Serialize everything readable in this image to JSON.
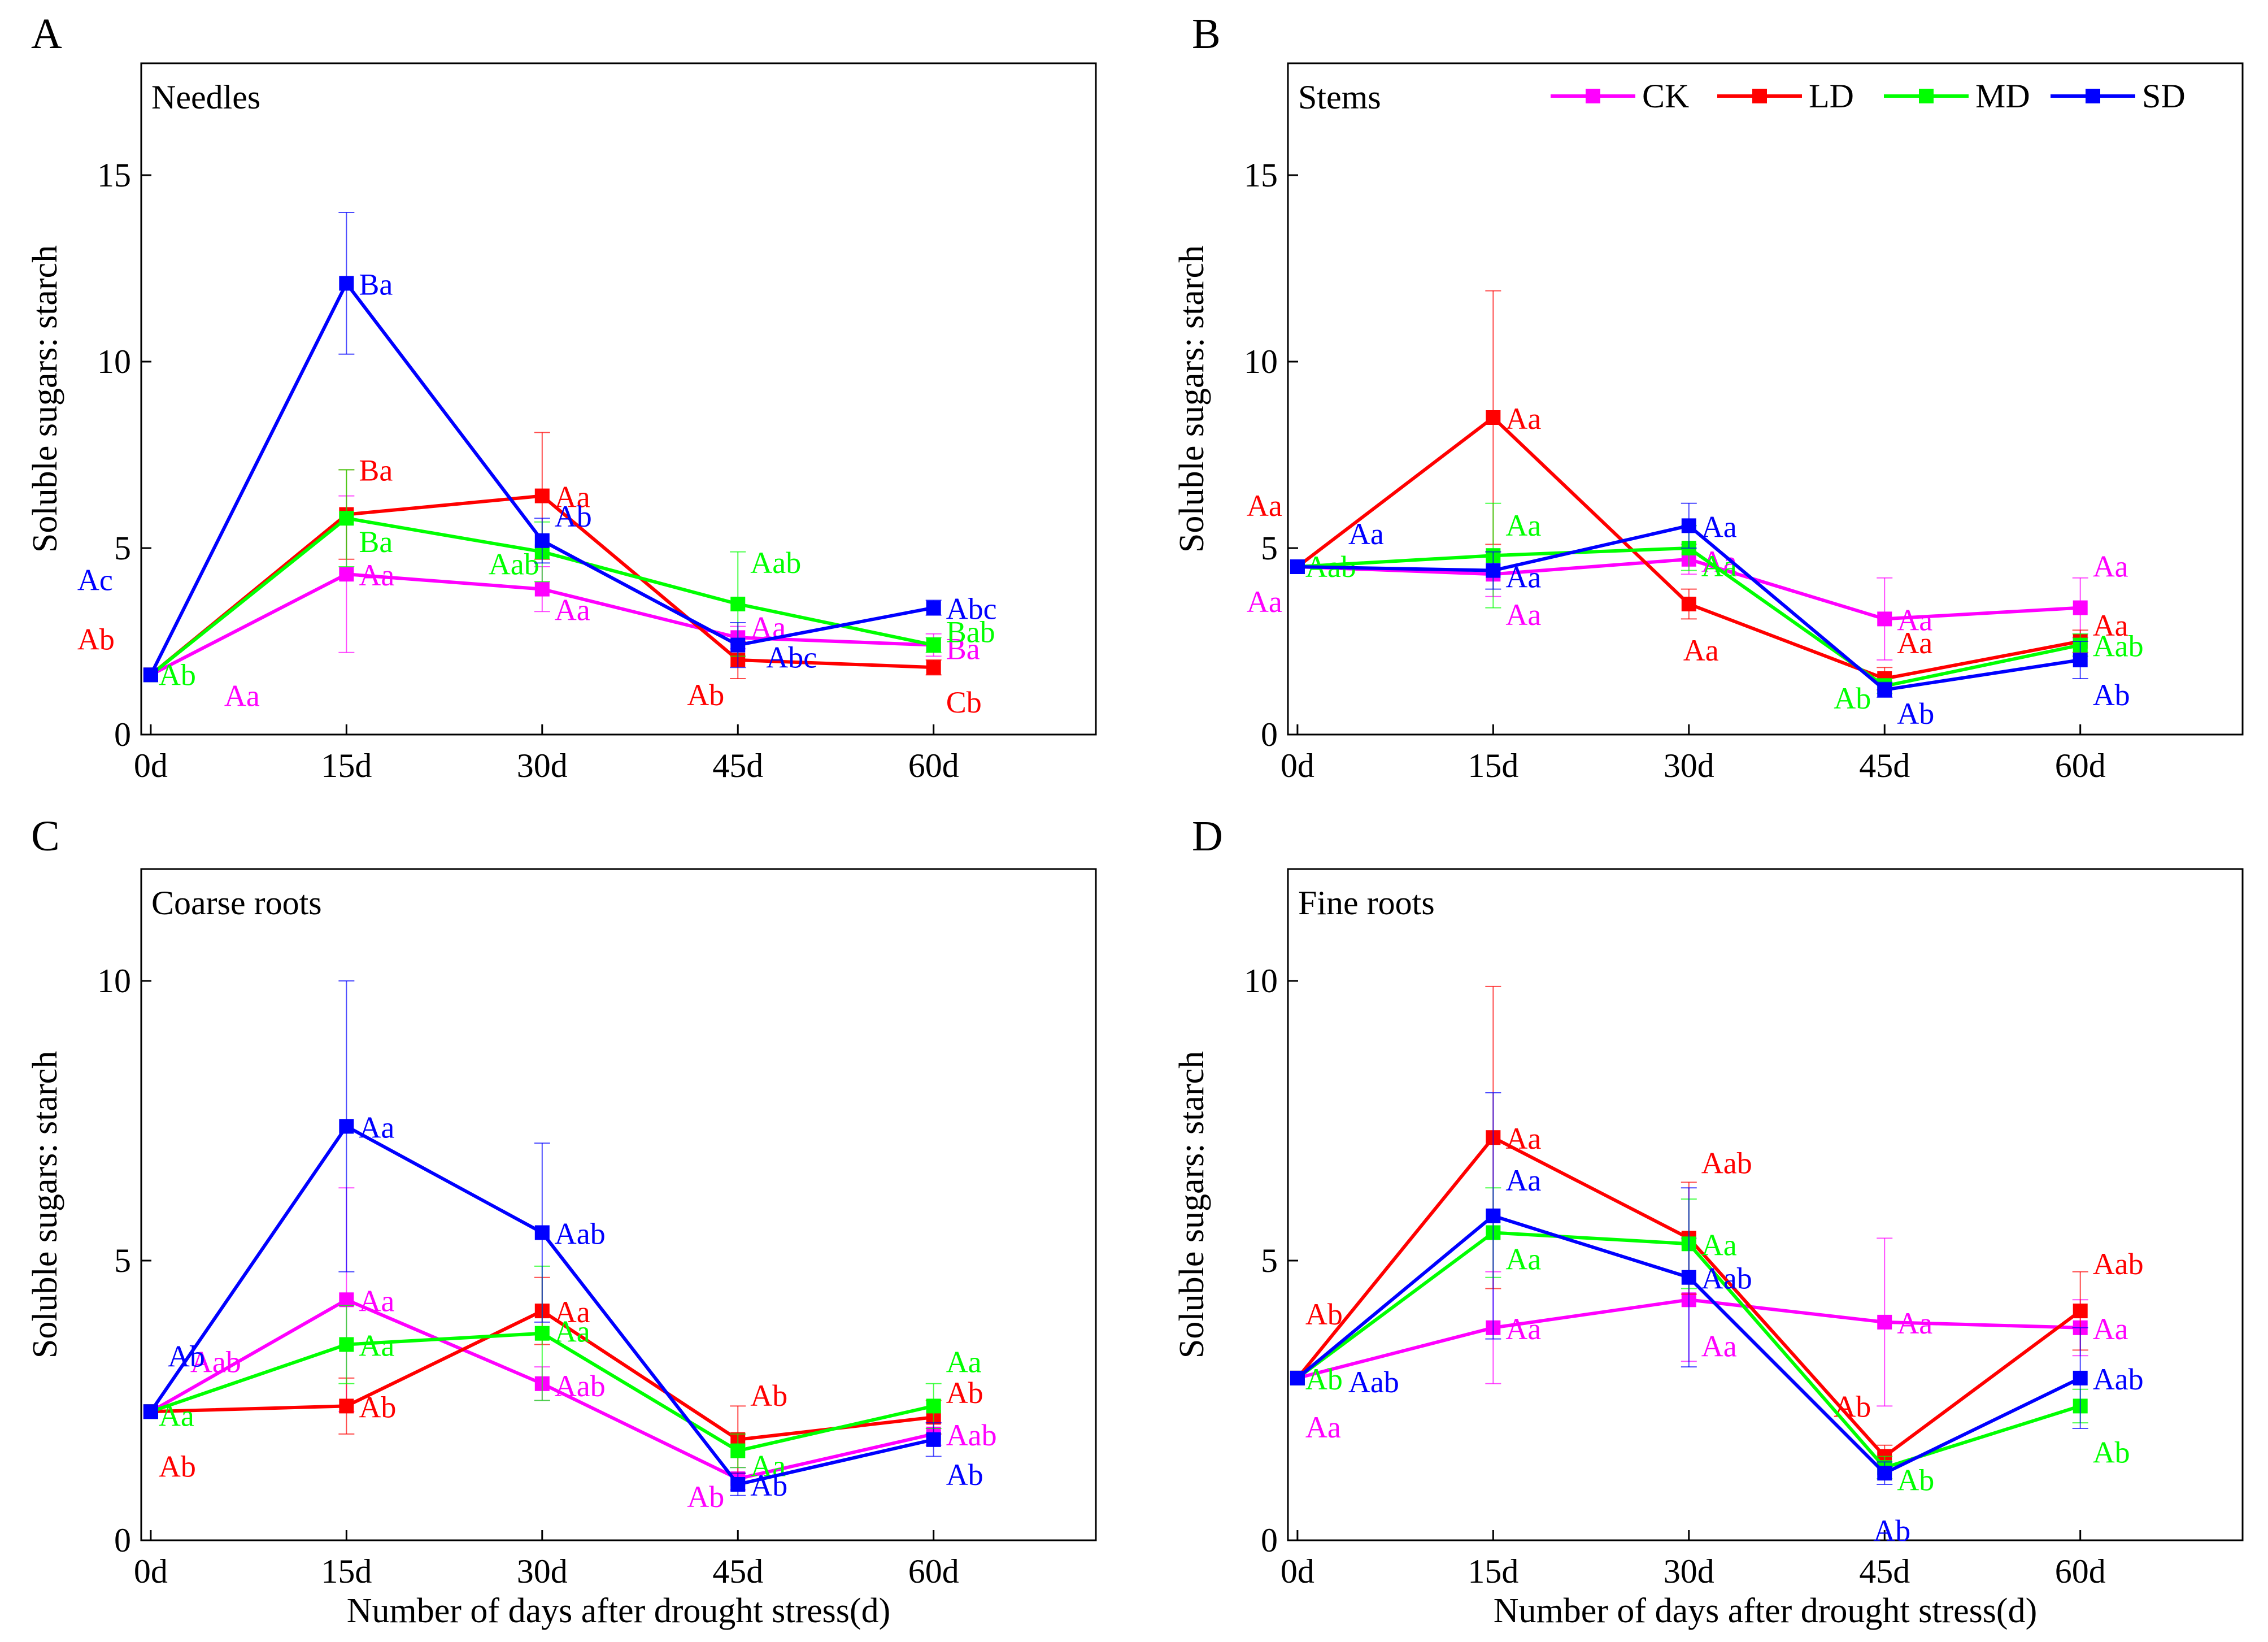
{
  "chart_data": [
    {
      "type": "line",
      "panel": "A",
      "title": "Needles",
      "ylabel": "Soluble sugars: starch",
      "xlabel": "",
      "categories": [
        "0d",
        "15d",
        "30d",
        "45d",
        "60d"
      ],
      "yticks": [
        0,
        5,
        10,
        15
      ],
      "ylim": [
        0,
        18
      ],
      "series": [
        {
          "name": "CK",
          "values": [
            1.6,
            4.3,
            3.9,
            2.6,
            2.4
          ],
          "errors": [
            0,
            2.1,
            0.6,
            0.3,
            0.3
          ],
          "labels": [
            "Aa",
            "Aa",
            "Aa",
            "Aa",
            "Ba"
          ]
        },
        {
          "name": "LD",
          "values": [
            1.6,
            5.9,
            6.4,
            2.0,
            1.8
          ],
          "errors": [
            0,
            1.2,
            1.7,
            0.5,
            0.2
          ],
          "labels": [
            "Ab",
            "Ba",
            "Aa",
            "Ab",
            "Cb"
          ]
        },
        {
          "name": "MD",
          "values": [
            1.6,
            5.8,
            4.9,
            3.5,
            2.4
          ],
          "errors": [
            0,
            1.3,
            0.8,
            1.4,
            0.2
          ],
          "labels": [
            "Ab",
            "Ba",
            "Aab",
            "Aab",
            "Bab"
          ]
        },
        {
          "name": "SD",
          "values": [
            1.6,
            12.1,
            5.2,
            2.4,
            3.4
          ],
          "errors": [
            0,
            1.9,
            0.6,
            0.6,
            0.2
          ],
          "labels": [
            "Ac",
            "Ba",
            "Ab",
            "Abc",
            "Abc"
          ]
        }
      ]
    },
    {
      "type": "line",
      "panel": "B",
      "title": "Stems",
      "ylabel": "Soluble sugars: starch",
      "xlabel": "",
      "categories": [
        "0d",
        "15d",
        "30d",
        "45d",
        "60d"
      ],
      "yticks": [
        0,
        5,
        10,
        15
      ],
      "ylim": [
        0,
        18
      ],
      "series": [
        {
          "name": "CK",
          "values": [
            4.5,
            4.3,
            4.7,
            3.1,
            3.4
          ],
          "errors": [
            0,
            0.6,
            0.4,
            1.1,
            0.8
          ],
          "labels": [
            "Aa",
            "Aa",
            "Aa",
            "Aa",
            "Aa"
          ]
        },
        {
          "name": "LD",
          "values": [
            4.5,
            8.5,
            3.5,
            1.5,
            2.5
          ],
          "errors": [
            0,
            3.4,
            0.4,
            0.3,
            0.3
          ],
          "labels": [
            "Aa",
            "Aa",
            "Aa",
            "Aa",
            "Aa"
          ]
        },
        {
          "name": "MD",
          "values": [
            4.5,
            4.8,
            5.0,
            1.3,
            2.4
          ],
          "errors": [
            0,
            1.4,
            0.6,
            0.2,
            0.3
          ],
          "labels": [
            "Aab",
            "Aa",
            "Aa",
            "Ab",
            "Aab"
          ]
        },
        {
          "name": "SD",
          "values": [
            4.5,
            4.4,
            5.6,
            1.2,
            2.0
          ],
          "errors": [
            0,
            0.5,
            0.6,
            0.2,
            0.5
          ],
          "labels": [
            "Aa",
            "Aa",
            "Aa",
            "Ab",
            "Ab"
          ]
        }
      ]
    },
    {
      "type": "line",
      "panel": "C",
      "title": "Coarse roots",
      "ylabel": "Soluble sugars: starch",
      "xlabel": "Number of days after drought stress(d)",
      "categories": [
        "0d",
        "15d",
        "30d",
        "45d",
        "60d"
      ],
      "yticks": [
        0,
        5,
        10
      ],
      "ylim": [
        0,
        12
      ],
      "series": [
        {
          "name": "CK",
          "values": [
            2.3,
            4.3,
            2.8,
            1.1,
            1.9
          ],
          "errors": [
            0,
            2.0,
            0.3,
            0.2,
            0.2
          ],
          "labels": [
            "Aab",
            "Aa",
            "Aab",
            "Ab",
            "Aab"
          ]
        },
        {
          "name": "LD",
          "values": [
            2.3,
            2.4,
            4.1,
            1.8,
            2.2
          ],
          "errors": [
            0,
            0.5,
            0.6,
            0.6,
            0.3
          ],
          "labels": [
            "Ab",
            "Ab",
            "Aa",
            "Ab",
            "Ab"
          ]
        },
        {
          "name": "MD",
          "values": [
            2.3,
            3.5,
            3.7,
            1.6,
            2.4
          ],
          "errors": [
            0,
            0.7,
            1.2,
            0.3,
            0.4
          ],
          "labels": [
            "Aa",
            "Aa",
            "Aa",
            "Aa",
            "Aa"
          ]
        },
        {
          "name": "SD",
          "values": [
            2.3,
            7.4,
            5.5,
            1.0,
            1.8
          ],
          "errors": [
            0,
            2.6,
            1.6,
            0.2,
            0.3
          ],
          "labels": [
            "Ab",
            "Aa",
            "Aab",
            "Ab",
            "Ab"
          ]
        }
      ]
    },
    {
      "type": "line",
      "panel": "D",
      "title": "Fine roots",
      "ylabel": "Soluble sugars: starch",
      "xlabel": "Number of days after drought stress(d)",
      "categories": [
        "0d",
        "15d",
        "30d",
        "45d",
        "60d"
      ],
      "yticks": [
        0,
        5,
        10
      ],
      "ylim": [
        0,
        12
      ],
      "series": [
        {
          "name": "CK",
          "values": [
            2.9,
            3.8,
            4.3,
            3.9,
            3.8
          ],
          "errors": [
            0,
            1.0,
            1.1,
            1.5,
            0.5
          ],
          "labels": [
            "Aa",
            "Aa",
            "Aa",
            "Aa",
            "Aa"
          ]
        },
        {
          "name": "LD",
          "values": [
            2.9,
            7.2,
            5.4,
            1.5,
            4.1
          ],
          "errors": [
            0,
            2.7,
            1.0,
            0.2,
            0.7
          ],
          "labels": [
            "Ab",
            "Aa",
            "Aab",
            "Ab",
            "Aab"
          ]
        },
        {
          "name": "MD",
          "values": [
            2.9,
            5.5,
            5.3,
            1.3,
            2.4
          ],
          "errors": [
            0,
            0.8,
            0.8,
            0.2,
            0.3
          ],
          "labels": [
            "Ab",
            "Aa",
            "Aa",
            "Ab",
            "Ab"
          ]
        },
        {
          "name": "SD",
          "values": [
            2.9,
            5.8,
            4.7,
            1.2,
            2.9
          ],
          "errors": [
            0,
            2.2,
            1.6,
            0.2,
            0.9
          ],
          "labels": [
            "Aab",
            "Aa",
            "Aab",
            "Ab",
            "Aab"
          ]
        }
      ]
    }
  ],
  "legend": {
    "entries": [
      "CK",
      "LD",
      "MD",
      "SD"
    ],
    "location": "top-right of panel B"
  },
  "colors": {
    "CK": "#ff00ff",
    "LD": "#ff0000",
    "MD": "#00ff00",
    "SD": "#0000ff"
  }
}
